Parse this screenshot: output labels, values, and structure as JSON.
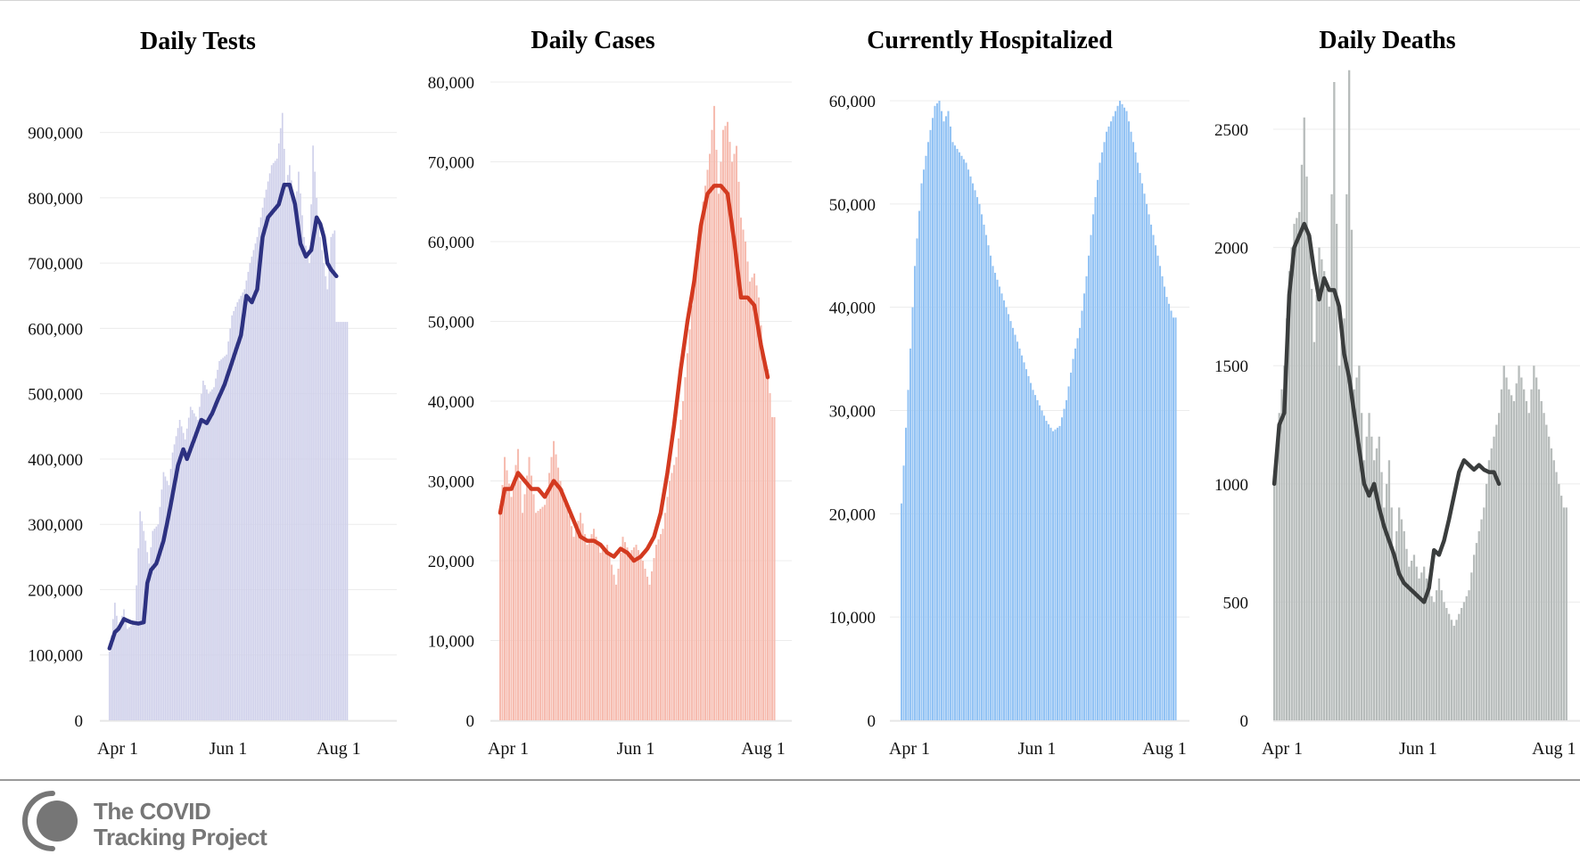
{
  "brand": {
    "line1": "The COVID",
    "line2": "Tracking Project",
    "logo_icon": "covid-tracking-project-logo-icon",
    "logo_color": "#767676"
  },
  "chart_data": [
    {
      "type": "bar",
      "title": "Daily Tests",
      "bar_color": "#cfd0ea",
      "line_color": "#2d3181",
      "ylim": [
        0,
        950000
      ],
      "yticks": [
        0,
        100000,
        200000,
        300000,
        400000,
        500000,
        600000,
        700000,
        800000,
        900000
      ],
      "ytick_labels": [
        "0",
        "100,000",
        "200,000",
        "300,000",
        "400,000",
        "500,000",
        "600,000",
        "700,000",
        "800,000",
        "900,000"
      ],
      "xtick_labels": [
        "Apr 1",
        "Jun 1",
        "Aug 1"
      ],
      "xtick_index": [
        0,
        61,
        122
      ],
      "days": 152,
      "bar_keys": [
        [
          0,
          105000
        ],
        [
          3,
          180000
        ],
        [
          5,
          140000
        ],
        [
          8,
          170000
        ],
        [
          10,
          140000
        ],
        [
          14,
          150000
        ],
        [
          17,
          320000
        ],
        [
          20,
          275000
        ],
        [
          22,
          240000
        ],
        [
          24,
          290000
        ],
        [
          27,
          300000
        ],
        [
          30,
          380000
        ],
        [
          33,
          360000
        ],
        [
          35,
          410000
        ],
        [
          39,
          460000
        ],
        [
          42,
          430000
        ],
        [
          45,
          480000
        ],
        [
          49,
          460000
        ],
        [
          52,
          520000
        ],
        [
          55,
          500000
        ],
        [
          58,
          510000
        ],
        [
          61,
          550000
        ],
        [
          65,
          560000
        ],
        [
          68,
          620000
        ],
        [
          71,
          640000
        ],
        [
          75,
          660000
        ],
        [
          78,
          700000
        ],
        [
          82,
          740000
        ],
        [
          86,
          800000
        ],
        [
          90,
          850000
        ],
        [
          93,
          860000
        ],
        [
          96,
          930000
        ],
        [
          98,
          820000
        ],
        [
          100,
          850000
        ],
        [
          103,
          780000
        ],
        [
          105,
          840000
        ],
        [
          108,
          740000
        ],
        [
          111,
          700000
        ],
        [
          113,
          880000
        ],
        [
          116,
          760000
        ],
        [
          119,
          700000
        ],
        [
          121,
          660000
        ],
        [
          123,
          740000
        ],
        [
          125,
          750000
        ],
        [
          126,
          610000
        ]
      ],
      "line_keys": [
        [
          0,
          110000
        ],
        [
          3,
          135000
        ],
        [
          5,
          140000
        ],
        [
          8,
          155000
        ],
        [
          12,
          150000
        ],
        [
          16,
          148000
        ],
        [
          19,
          150000
        ],
        [
          21,
          210000
        ],
        [
          23,
          230000
        ],
        [
          26,
          240000
        ],
        [
          30,
          275000
        ],
        [
          34,
          330000
        ],
        [
          38,
          390000
        ],
        [
          41,
          415000
        ],
        [
          43,
          400000
        ],
        [
          47,
          430000
        ],
        [
          51,
          460000
        ],
        [
          54,
          455000
        ],
        [
          57,
          470000
        ],
        [
          60,
          490000
        ],
        [
          64,
          515000
        ],
        [
          67,
          540000
        ],
        [
          70,
          565000
        ],
        [
          73,
          590000
        ],
        [
          76,
          650000
        ],
        [
          79,
          640000
        ],
        [
          82,
          660000
        ],
        [
          85,
          740000
        ],
        [
          88,
          770000
        ],
        [
          91,
          780000
        ],
        [
          94,
          790000
        ],
        [
          97,
          820000
        ],
        [
          100,
          820000
        ],
        [
          103,
          790000
        ],
        [
          106,
          730000
        ],
        [
          109,
          710000
        ],
        [
          112,
          720000
        ],
        [
          115,
          770000
        ],
        [
          117,
          760000
        ],
        [
          119,
          740000
        ],
        [
          121,
          700000
        ],
        [
          123,
          690000
        ],
        [
          126,
          680000
        ]
      ]
    },
    {
      "type": "bar",
      "title": "Daily Cases",
      "bar_color": "#f6bcb0",
      "line_color": "#d33a20",
      "ylim": [
        0,
        80000
      ],
      "yticks": [
        0,
        10000,
        20000,
        30000,
        40000,
        50000,
        60000,
        70000,
        80000
      ],
      "ytick_labels": [
        "0",
        "10,000",
        "20,000",
        "30,000",
        "40,000",
        "50,000",
        "60,000",
        "70,000",
        "80,000"
      ],
      "xtick_labels": [
        "Apr 1",
        "Jun 1",
        "Aug 1"
      ],
      "xtick_index": [
        0,
        61,
        122
      ],
      "days": 152,
      "bar_keys": [
        [
          0,
          26000
        ],
        [
          2,
          33000
        ],
        [
          5,
          28000
        ],
        [
          8,
          34000
        ],
        [
          10,
          26000
        ],
        [
          13,
          33000
        ],
        [
          16,
          26000
        ],
        [
          20,
          27000
        ],
        [
          24,
          35000
        ],
        [
          27,
          30000
        ],
        [
          30,
          27000
        ],
        [
          33,
          23000
        ],
        [
          36,
          26000
        ],
        [
          39,
          22000
        ],
        [
          42,
          24000
        ],
        [
          45,
          21000
        ],
        [
          48,
          22000
        ],
        [
          52,
          17000
        ],
        [
          55,
          23000
        ],
        [
          58,
          21000
        ],
        [
          61,
          22000
        ],
        [
          64,
          20000
        ],
        [
          67,
          17000
        ],
        [
          70,
          22000
        ],
        [
          73,
          24000
        ],
        [
          76,
          30000
        ],
        [
          79,
          33000
        ],
        [
          82,
          40000
        ],
        [
          85,
          49000
        ],
        [
          88,
          58000
        ],
        [
          91,
          65000
        ],
        [
          94,
          71000
        ],
        [
          96,
          77000
        ],
        [
          98,
          66000
        ],
        [
          100,
          74000
        ],
        [
          102,
          75000
        ],
        [
          104,
          70000
        ],
        [
          106,
          72000
        ],
        [
          108,
          63000
        ],
        [
          110,
          60000
        ],
        [
          112,
          55000
        ],
        [
          114,
          56000
        ],
        [
          116,
          53000
        ],
        [
          118,
          46000
        ],
        [
          120,
          44000
        ],
        [
          122,
          38000
        ]
      ],
      "line_keys": [
        [
          0,
          26000
        ],
        [
          2,
          29000
        ],
        [
          5,
          29000
        ],
        [
          8,
          31000
        ],
        [
          11,
          30000
        ],
        [
          14,
          29000
        ],
        [
          17,
          29000
        ],
        [
          20,
          28000
        ],
        [
          24,
          30000
        ],
        [
          27,
          29000
        ],
        [
          30,
          27000
        ],
        [
          33,
          25000
        ],
        [
          36,
          23000
        ],
        [
          39,
          22500
        ],
        [
          42,
          22500
        ],
        [
          45,
          22000
        ],
        [
          48,
          21000
        ],
        [
          51,
          20500
        ],
        [
          54,
          21500
        ],
        [
          57,
          21000
        ],
        [
          60,
          20000
        ],
        [
          63,
          20500
        ],
        [
          66,
          21500
        ],
        [
          69,
          23000
        ],
        [
          72,
          26000
        ],
        [
          75,
          31000
        ],
        [
          78,
          37000
        ],
        [
          81,
          44000
        ],
        [
          84,
          50000
        ],
        [
          87,
          55000
        ],
        [
          90,
          62000
        ],
        [
          93,
          66000
        ],
        [
          96,
          67000
        ],
        [
          99,
          67000
        ],
        [
          102,
          66000
        ],
        [
          105,
          60000
        ],
        [
          108,
          53000
        ],
        [
          111,
          53000
        ],
        [
          114,
          52000
        ],
        [
          117,
          47000
        ],
        [
          120,
          43000
        ]
      ]
    },
    {
      "type": "bar",
      "title": "Currently Hospitalized",
      "bar_color": "#93c3f4",
      "ylim": [
        0,
        60000
      ],
      "yticks": [
        0,
        10000,
        20000,
        30000,
        40000,
        50000,
        60000
      ],
      "ytick_labels": [
        "0",
        "10,000",
        "20,000",
        "30,000",
        "40,000",
        "50,000",
        "60,000"
      ],
      "xtick_labels": [
        "Apr 1",
        "Jun 1",
        "Aug 1"
      ],
      "xtick_index": [
        0,
        61,
        122
      ],
      "days": 152,
      "bar_keys": [
        [
          0,
          21000
        ],
        [
          3,
          32000
        ],
        [
          6,
          44000
        ],
        [
          9,
          52000
        ],
        [
          12,
          56000
        ],
        [
          15,
          59500
        ],
        [
          17,
          60000
        ],
        [
          19,
          58000
        ],
        [
          21,
          59000
        ],
        [
          23,
          56000
        ],
        [
          26,
          55000
        ],
        [
          29,
          54000
        ],
        [
          32,
          52000
        ],
        [
          35,
          50000
        ],
        [
          38,
          47000
        ],
        [
          41,
          44000
        ],
        [
          44,
          42000
        ],
        [
          47,
          40000
        ],
        [
          50,
          38000
        ],
        [
          53,
          36000
        ],
        [
          56,
          34000
        ],
        [
          59,
          32000
        ],
        [
          62,
          30500
        ],
        [
          65,
          29000
        ],
        [
          68,
          28000
        ],
        [
          71,
          28500
        ],
        [
          74,
          31000
        ],
        [
          77,
          35000
        ],
        [
          80,
          38000
        ],
        [
          83,
          43000
        ],
        [
          86,
          49000
        ],
        [
          89,
          54000
        ],
        [
          92,
          57000
        ],
        [
          95,
          58500
        ],
        [
          98,
          60000
        ],
        [
          101,
          59000
        ],
        [
          104,
          56000
        ],
        [
          107,
          53000
        ],
        [
          110,
          50000
        ],
        [
          113,
          47000
        ],
        [
          116,
          44000
        ],
        [
          119,
          41000
        ],
        [
          122,
          39000
        ]
      ]
    },
    {
      "type": "bar",
      "title": "Daily Deaths",
      "bar_color": "#b7bcbb",
      "line_color": "#3a3d3d",
      "ylim": [
        0,
        2700
      ],
      "yticks": [
        0,
        500,
        1000,
        1500,
        2000,
        2500
      ],
      "ytick_labels": [
        "0",
        "500",
        "1000",
        "1500",
        "2000",
        "2500"
      ],
      "xtick_labels": [
        "Apr 1",
        "Jun 1",
        "Aug 1"
      ],
      "xtick_index": [
        0,
        61,
        122
      ],
      "days": 152,
      "bar_keys": [
        [
          0,
          1000
        ],
        [
          2,
          1300
        ],
        [
          4,
          1500
        ],
        [
          6,
          1900
        ],
        [
          8,
          2100
        ],
        [
          10,
          2150
        ],
        [
          12,
          2550
        ],
        [
          14,
          2050
        ],
        [
          16,
          1600
        ],
        [
          18,
          2000
        ],
        [
          20,
          1900
        ],
        [
          22,
          1750
        ],
        [
          24,
          2700
        ],
        [
          26,
          1500
        ],
        [
          28,
          1700
        ],
        [
          30,
          2750
        ],
        [
          32,
          1400
        ],
        [
          34,
          1500
        ],
        [
          36,
          1100
        ],
        [
          38,
          1300
        ],
        [
          40,
          1100
        ],
        [
          42,
          1200
        ],
        [
          44,
          900
        ],
        [
          46,
          1100
        ],
        [
          48,
          700
        ],
        [
          50,
          900
        ],
        [
          52,
          800
        ],
        [
          54,
          650
        ],
        [
          56,
          700
        ],
        [
          58,
          600
        ],
        [
          60,
          650
        ],
        [
          62,
          550
        ],
        [
          64,
          500
        ],
        [
          66,
          600
        ],
        [
          68,
          500
        ],
        [
          70,
          450
        ],
        [
          72,
          400
        ],
        [
          74,
          450
        ],
        [
          76,
          500
        ],
        [
          78,
          550
        ],
        [
          80,
          700
        ],
        [
          82,
          800
        ],
        [
          84,
          900
        ],
        [
          86,
          1100
        ],
        [
          88,
          1200
        ],
        [
          90,
          1300
        ],
        [
          92,
          1500
        ],
        [
          94,
          1400
        ],
        [
          96,
          1350
        ],
        [
          98,
          1500
        ],
        [
          100,
          1400
        ],
        [
          102,
          1300
        ],
        [
          104,
          1500
        ],
        [
          106,
          1400
        ],
        [
          108,
          1300
        ],
        [
          110,
          1200
        ],
        [
          112,
          1100
        ],
        [
          114,
          1000
        ],
        [
          116,
          900
        ]
      ],
      "line_keys": [
        [
          0,
          1000
        ],
        [
          2,
          1250
        ],
        [
          4,
          1300
        ],
        [
          6,
          1800
        ],
        [
          8,
          2000
        ],
        [
          10,
          2050
        ],
        [
          12,
          2100
        ],
        [
          14,
          2050
        ],
        [
          16,
          1900
        ],
        [
          18,
          1780
        ],
        [
          20,
          1870
        ],
        [
          22,
          1820
        ],
        [
          24,
          1820
        ],
        [
          26,
          1750
        ],
        [
          28,
          1550
        ],
        [
          30,
          1450
        ],
        [
          32,
          1300
        ],
        [
          34,
          1150
        ],
        [
          36,
          1000
        ],
        [
          38,
          950
        ],
        [
          40,
          1000
        ],
        [
          42,
          900
        ],
        [
          44,
          820
        ],
        [
          46,
          760
        ],
        [
          48,
          700
        ],
        [
          50,
          620
        ],
        [
          52,
          580
        ],
        [
          54,
          560
        ],
        [
          56,
          540
        ],
        [
          58,
          520
        ],
        [
          60,
          500
        ],
        [
          62,
          560
        ],
        [
          64,
          720
        ],
        [
          66,
          700
        ],
        [
          68,
          760
        ],
        [
          70,
          850
        ],
        [
          72,
          950
        ],
        [
          74,
          1050
        ],
        [
          76,
          1100
        ],
        [
          78,
          1080
        ],
        [
          80,
          1060
        ],
        [
          82,
          1080
        ],
        [
          84,
          1060
        ],
        [
          86,
          1050
        ],
        [
          88,
          1050
        ],
        [
          90,
          1000
        ]
      ]
    }
  ]
}
